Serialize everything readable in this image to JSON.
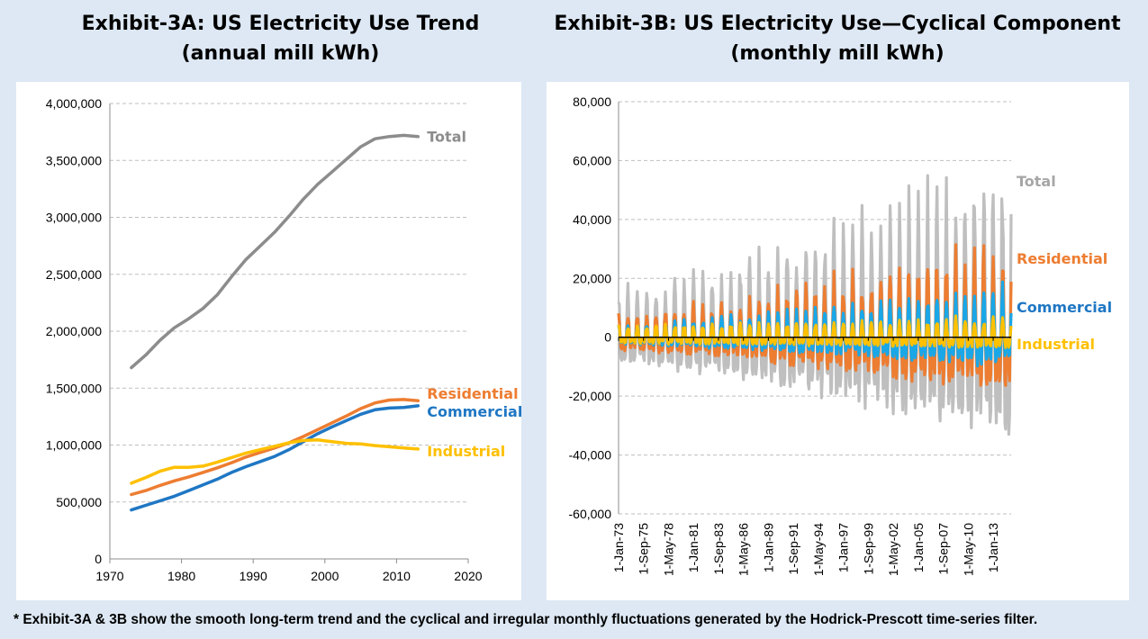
{
  "colors": {
    "background": "#dde8f4",
    "total": "#8c8c8c",
    "total_light": "#bfbfbf",
    "residential": "#ed7d31",
    "commercial": "#1f77c4",
    "commercial_light": "#1aa7e8",
    "industrial": "#ffc000",
    "gridline": "#bfbfbf"
  },
  "footnote": "* Exhibit-3A & 3B show the smooth long-term trend and the cyclical and irregular monthly fluctuations generated by the Hodrick-Prescott time-series filter.",
  "chart_data": [
    {
      "type": "line",
      "title_line1": "Exhibit-3A: US Electricity Use Trend",
      "title_line2": "(annual mill kWh)",
      "xlabel": "",
      "ylabel": "",
      "xlim": [
        1970,
        2020
      ],
      "ylim": [
        0,
        4000000
      ],
      "x_ticks": [
        1970,
        1980,
        1990,
        2000,
        2010,
        2020
      ],
      "y_ticks": [
        0,
        500000,
        1000000,
        1500000,
        2000000,
        2500000,
        3000000,
        3500000,
        4000000
      ],
      "y_tick_labels": [
        "0",
        "500,000",
        "1,000,000",
        "1,500,000",
        "2,000,000",
        "2,500,000",
        "3,000,000",
        "3,500,000",
        "4,000,000"
      ],
      "grid": "horizontal",
      "x": [
        1973,
        1975,
        1977,
        1979,
        1981,
        1983,
        1985,
        1987,
        1989,
        1991,
        1993,
        1995,
        1997,
        1999,
        2001,
        2003,
        2005,
        2007,
        2009,
        2011,
        2013
      ],
      "series": [
        {
          "name": "Total",
          "color_key": "total",
          "values": [
            1680000,
            1790000,
            1920000,
            2030000,
            2110000,
            2200000,
            2320000,
            2480000,
            2630000,
            2750000,
            2870000,
            3010000,
            3160000,
            3290000,
            3400000,
            3510000,
            3620000,
            3690000,
            3710000,
            3720000,
            3710000
          ]
        },
        {
          "name": "Residential",
          "color_key": "residential",
          "values": [
            565000,
            600000,
            645000,
            685000,
            720000,
            760000,
            800000,
            845000,
            895000,
            935000,
            975000,
            1020000,
            1075000,
            1135000,
            1195000,
            1255000,
            1320000,
            1370000,
            1395000,
            1400000,
            1390000
          ]
        },
        {
          "name": "Commercial",
          "color_key": "commercial",
          "values": [
            430000,
            470000,
            510000,
            550000,
            600000,
            650000,
            700000,
            760000,
            810000,
            855000,
            900000,
            960000,
            1030000,
            1100000,
            1160000,
            1215000,
            1270000,
            1310000,
            1325000,
            1330000,
            1345000
          ]
        },
        {
          "name": "Industrial",
          "color_key": "industrial",
          "values": [
            665000,
            715000,
            770000,
            805000,
            805000,
            815000,
            850000,
            890000,
            930000,
            960000,
            990000,
            1020000,
            1040000,
            1045000,
            1030000,
            1015000,
            1010000,
            995000,
            985000,
            975000,
            965000
          ]
        }
      ]
    },
    {
      "type": "line",
      "title_line1": "Exhibit-3B: US Electricity Use—Cyclical Component",
      "title_line2": "(monthly mill kWh)",
      "xlabel": "",
      "ylabel": "",
      "ylim": [
        -60000,
        80000
      ],
      "y_ticks": [
        -60000,
        -40000,
        -20000,
        0,
        20000,
        40000,
        60000,
        80000
      ],
      "y_tick_labels": [
        "-60,000",
        "-40,000",
        "-20,000",
        "0",
        "20,000",
        "40,000",
        "60,000",
        "80,000"
      ],
      "x_tick_labels": [
        "1-Jan-73",
        "1-Sep-75",
        "1-May-78",
        "1-Jan-81",
        "1-Sep-83",
        "1-May-86",
        "1-Jan-89",
        "1-Sep-91",
        "1-May-94",
        "1-Jan-97",
        "1-Sep-99",
        "1-May-02",
        "1-Jan-05",
        "1-Sep-07",
        "1-May-10",
        "1-Jan-13"
      ],
      "time_range": [
        "1973-01",
        "2014-12"
      ],
      "grid": "horizontal",
      "series": [
        {
          "name": "Total",
          "color_key": "total_light",
          "amplitude_start": 14000,
          "amplitude_end": 55000
        },
        {
          "name": "Residential",
          "color_key": "residential",
          "amplitude_start": 7000,
          "amplitude_end": 30000
        },
        {
          "name": "Commercial",
          "color_key": "commercial_light",
          "amplitude_start": 4000,
          "amplitude_end": 16000
        },
        {
          "name": "Industrial",
          "color_key": "industrial",
          "amplitude_start": 3500,
          "amplitude_end": 6000
        }
      ]
    }
  ]
}
